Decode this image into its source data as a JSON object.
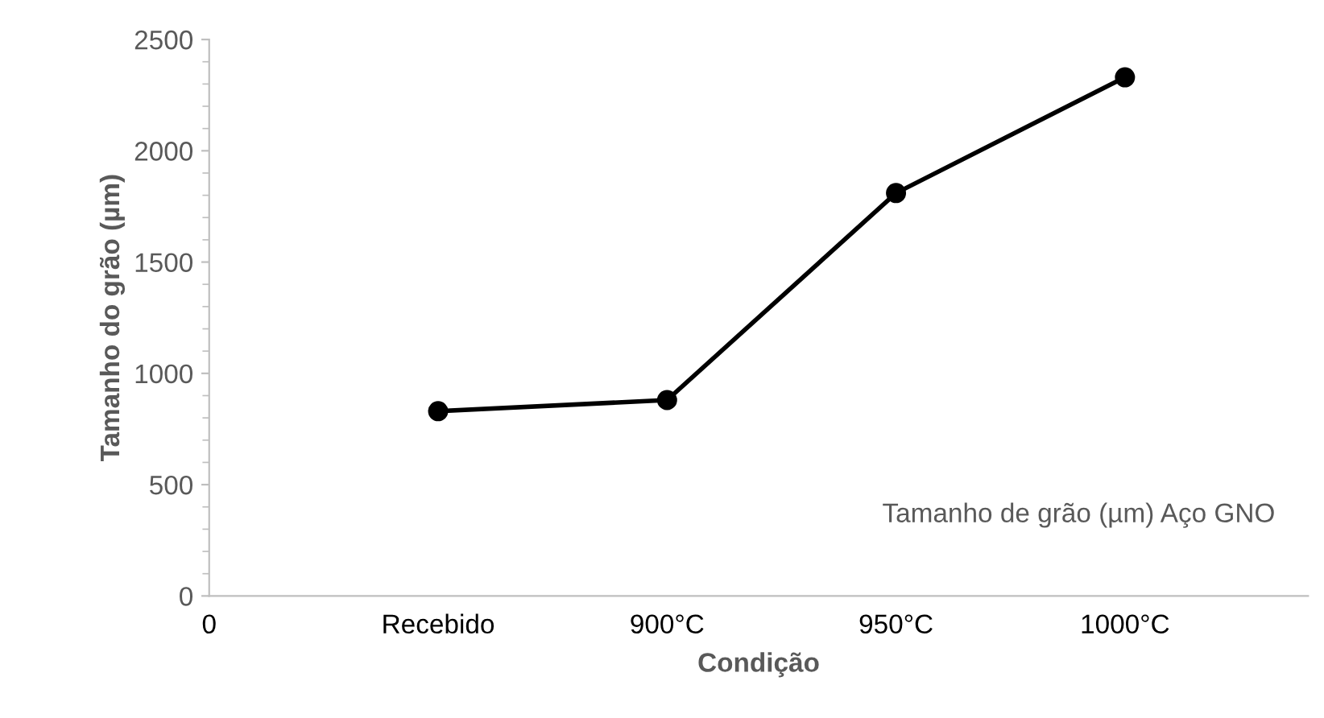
{
  "chart_data": {
    "type": "line",
    "xlabel": "Condição",
    "ylabel": "Tamanho do grão (µm)",
    "categories": [
      "0",
      "Recebido",
      "900°C",
      "950°C",
      "1000°C"
    ],
    "series": [
      {
        "color": "#000000",
        "values": [
          null,
          830,
          880,
          1810,
          2330
        ]
      }
    ],
    "ylim": [
      0,
      2500
    ],
    "yticks": [
      0,
      500,
      1000,
      1500,
      2000,
      2500
    ],
    "marker": "circle",
    "line_style": "solid",
    "grid": false,
    "legend": false,
    "annotations": [
      "Tamanho de grão (µm) Aço GNO"
    ]
  }
}
